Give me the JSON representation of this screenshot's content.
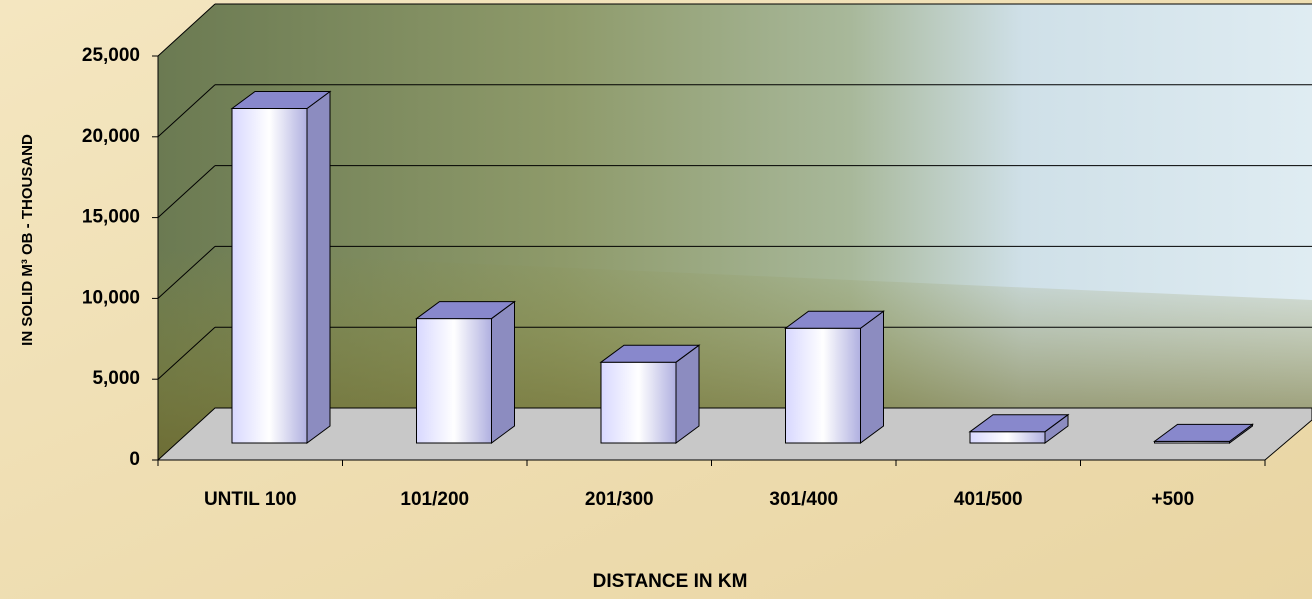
{
  "chart_data": {
    "type": "bar3d",
    "x_label": "DISTANCE IN KM",
    "y_label": "IN SOLID M³ OB - THOUSAND",
    "categories": [
      "UNTIL 100",
      "101/200",
      "201/300",
      "301/400",
      "401/500",
      "+500"
    ],
    "values": [
      20700,
      7700,
      5000,
      7100,
      700,
      100
    ],
    "color": "#b8b8f0",
    "ylim": [
      0,
      25000
    ],
    "yticks": [
      0,
      {
        "value": 5000,
        "label": "5,000"
      },
      {
        "value": 10000,
        "label": "10,000"
      },
      {
        "value": 15000,
        "label": "15,000"
      },
      {
        "value": 20000,
        "label": "20,000"
      },
      {
        "value": 25000,
        "label": "25,000"
      }
    ],
    "grid": true
  }
}
